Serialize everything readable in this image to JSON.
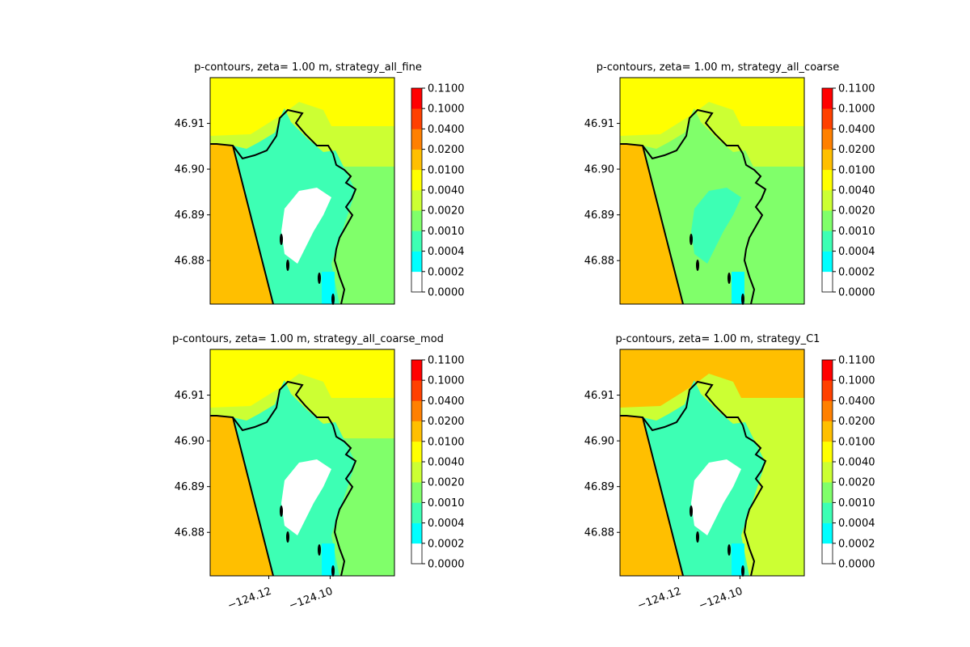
{
  "figure": {
    "colorbar_ticks": [
      "0.0000",
      "0.0002",
      "0.0004",
      "0.0010",
      "0.0020",
      "0.0040",
      "0.0100",
      "0.0200",
      "0.0400",
      "0.1000",
      "0.1100"
    ],
    "colorbar_colors": [
      "#ffffff",
      "#00ffff",
      "#3dffb4",
      "#80ff6a",
      "#ccff33",
      "#ffff00",
      "#ffbf00",
      "#ff8000",
      "#ff4000",
      "#ff0000"
    ],
    "y_ticks": [
      "46.91",
      "46.90",
      "46.89",
      "46.88"
    ],
    "x_ticks": [
      "−124.12",
      "−124.10"
    ],
    "colors": {
      "coastline": "#000000",
      "shelf": "#ffbf00",
      "ocean_north": "#ffff00",
      "bay": "#3dffb4",
      "east_land": "#ccff33",
      "east_land_alt": "#80ff6a",
      "dry": "#ffffff",
      "shallow": "#00ffff"
    }
  },
  "chart_data": [
    {
      "type": "heatmap",
      "title": "p-contours, zeta= 1.00 m, strategy_all_fine",
      "ylim": [
        46.87,
        46.92
      ],
      "y_ticks": [
        46.88,
        46.89,
        46.9,
        46.91
      ],
      "x_ticks": [],
      "colorbar_levels": [
        0.0,
        0.0002,
        0.0004,
        0.001,
        0.002,
        0.004,
        0.01,
        0.02,
        0.04,
        0.1,
        0.11
      ],
      "north_color": "#ffff00",
      "east_color": "#ccff33",
      "east_alt_color": "#80ff6a",
      "bay_color": "#3dffb4"
    },
    {
      "type": "heatmap",
      "title": "p-contours, zeta= 1.00 m, strategy_all_coarse",
      "ylim": [
        46.87,
        46.92
      ],
      "y_ticks": [
        46.88,
        46.89,
        46.9,
        46.91
      ],
      "x_ticks": [],
      "colorbar_levels": [
        0.0,
        0.0002,
        0.0004,
        0.001,
        0.002,
        0.004,
        0.01,
        0.02,
        0.04,
        0.1,
        0.11
      ],
      "north_color": "#ffff00",
      "east_color": "#ccff33",
      "east_alt_color": "#80ff6a",
      "bay_color": "#80ff6a"
    },
    {
      "type": "heatmap",
      "title": "p-contours, zeta= 1.00 m, strategy_all_coarse_mod",
      "ylim": [
        46.87,
        46.92
      ],
      "y_ticks": [
        46.88,
        46.89,
        46.9,
        46.91
      ],
      "x_ticks": [
        -124.12,
        -124.1
      ],
      "colorbar_levels": [
        0.0,
        0.0002,
        0.0004,
        0.001,
        0.002,
        0.004,
        0.01,
        0.02,
        0.04,
        0.1,
        0.11
      ],
      "north_color": "#ffff00",
      "east_color": "#ccff33",
      "east_alt_color": "#80ff6a",
      "bay_color": "#3dffb4"
    },
    {
      "type": "heatmap",
      "title": "p-contours, zeta= 1.00 m, strategy_C1",
      "ylim": [
        46.87,
        46.92
      ],
      "y_ticks": [
        46.88,
        46.89,
        46.9,
        46.91
      ],
      "x_ticks": [
        -124.12,
        -124.1
      ],
      "colorbar_levels": [
        0.0,
        0.0002,
        0.0004,
        0.001,
        0.002,
        0.004,
        0.01,
        0.02,
        0.04,
        0.1,
        0.11
      ],
      "north_color": "#ffbf00",
      "east_color": "#ccff33",
      "east_alt_color": "#ccff33",
      "bay_color": "#3dffb4"
    }
  ]
}
